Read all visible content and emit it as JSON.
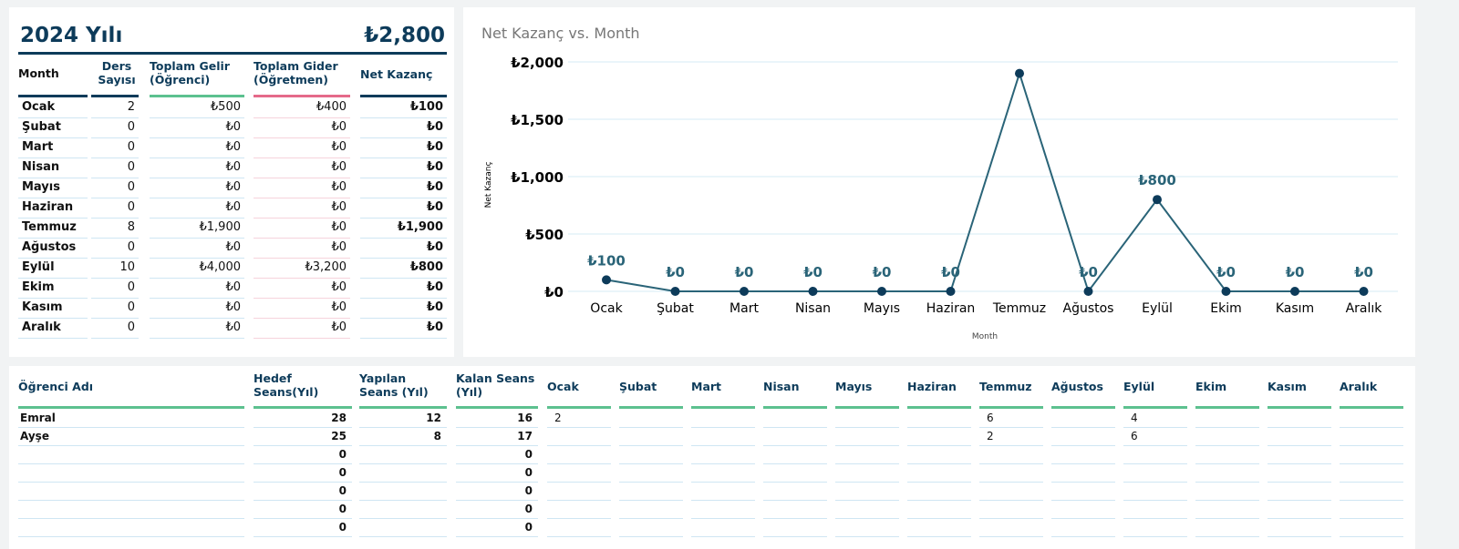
{
  "summary": {
    "title": "2024 Yılı",
    "total": "₺2,800",
    "headers": [
      "Month",
      "Ders Sayısı",
      "Toplam Gelir (Öğrenci)",
      "Toplam Gider (Öğretmen)",
      "Net Kazanç"
    ],
    "rows": [
      [
        "Ocak",
        "2",
        "₺500",
        "₺400",
        "₺100"
      ],
      [
        "Şubat",
        "0",
        "₺0",
        "₺0",
        "₺0"
      ],
      [
        "Mart",
        "0",
        "₺0",
        "₺0",
        "₺0"
      ],
      [
        "Nisan",
        "0",
        "₺0",
        "₺0",
        "₺0"
      ],
      [
        "Mayıs",
        "0",
        "₺0",
        "₺0",
        "₺0"
      ],
      [
        "Haziran",
        "0",
        "₺0",
        "₺0",
        "₺0"
      ],
      [
        "Temmuz",
        "8",
        "₺1,900",
        "₺0",
        "₺1,900"
      ],
      [
        "Ağustos",
        "0",
        "₺0",
        "₺0",
        "₺0"
      ],
      [
        "Eylül",
        "10",
        "₺4,000",
        "₺3,200",
        "₺800"
      ],
      [
        "Ekim",
        "0",
        "₺0",
        "₺0",
        "₺0"
      ],
      [
        "Kasım",
        "0",
        "₺0",
        "₺0",
        "₺0"
      ],
      [
        "Aralık",
        "0",
        "₺0",
        "₺0",
        "₺0"
      ]
    ]
  },
  "chart_data": {
    "type": "line",
    "title": "Net Kazanç vs. Month",
    "xlabel": "Month",
    "ylabel": "Net Kazanç",
    "categories": [
      "Ocak",
      "Şubat",
      "Mart",
      "Nisan",
      "Mayıs",
      "Haziran",
      "Temmuz",
      "Ağustos",
      "Eylül",
      "Ekim",
      "Kasım",
      "Aralık"
    ],
    "values": [
      100,
      0,
      0,
      0,
      0,
      0,
      1900,
      0,
      800,
      0,
      0,
      0
    ],
    "data_labels": [
      "₺100",
      "₺0",
      "₺0",
      "₺0",
      "₺0",
      "₺0",
      "",
      "₺0",
      "₺800",
      "₺0",
      "₺0",
      "₺0"
    ],
    "yticks": [
      "₺0",
      "₺500",
      "₺1,000",
      "₺1,500",
      "₺2,000"
    ],
    "ylim": [
      0,
      2000
    ],
    "grid": true,
    "color": "#2a6478"
  },
  "students": {
    "headers": [
      "Öğrenci Adı",
      "Hedef Seans(Yıl)",
      "Yapılan Seans (Yıl)",
      "Kalan Seans (Yıl)",
      "Ocak",
      "Şubat",
      "Mart",
      "Nisan",
      "Mayıs",
      "Haziran",
      "Temmuz",
      "Ağustos",
      "Eylül",
      "Ekim",
      "Kasım",
      "Aralık"
    ],
    "rows": [
      [
        "Emral",
        "28",
        "12",
        "16",
        "2",
        "",
        "",
        "",
        "",
        "",
        "6",
        "",
        "4",
        "",
        "",
        ""
      ],
      [
        "Ayşe",
        "25",
        "8",
        "17",
        "",
        "",
        "",
        "",
        "",
        "",
        "2",
        "",
        "6",
        "",
        "",
        ""
      ],
      [
        "",
        "0",
        "",
        "0",
        "",
        "",
        "",
        "",
        "",
        "",
        "",
        "",
        "",
        "",
        "",
        ""
      ],
      [
        "",
        "0",
        "",
        "0",
        "",
        "",
        "",
        "",
        "",
        "",
        "",
        "",
        "",
        "",
        "",
        ""
      ],
      [
        "",
        "0",
        "",
        "0",
        "",
        "",
        "",
        "",
        "",
        "",
        "",
        "",
        "",
        "",
        "",
        ""
      ],
      [
        "",
        "0",
        "",
        "0",
        "",
        "",
        "",
        "",
        "",
        "",
        "",
        "",
        "",
        "",
        "",
        ""
      ],
      [
        "",
        "0",
        "",
        "0",
        "",
        "",
        "",
        "",
        "",
        "",
        "",
        "",
        "",
        "",
        "",
        ""
      ]
    ]
  }
}
